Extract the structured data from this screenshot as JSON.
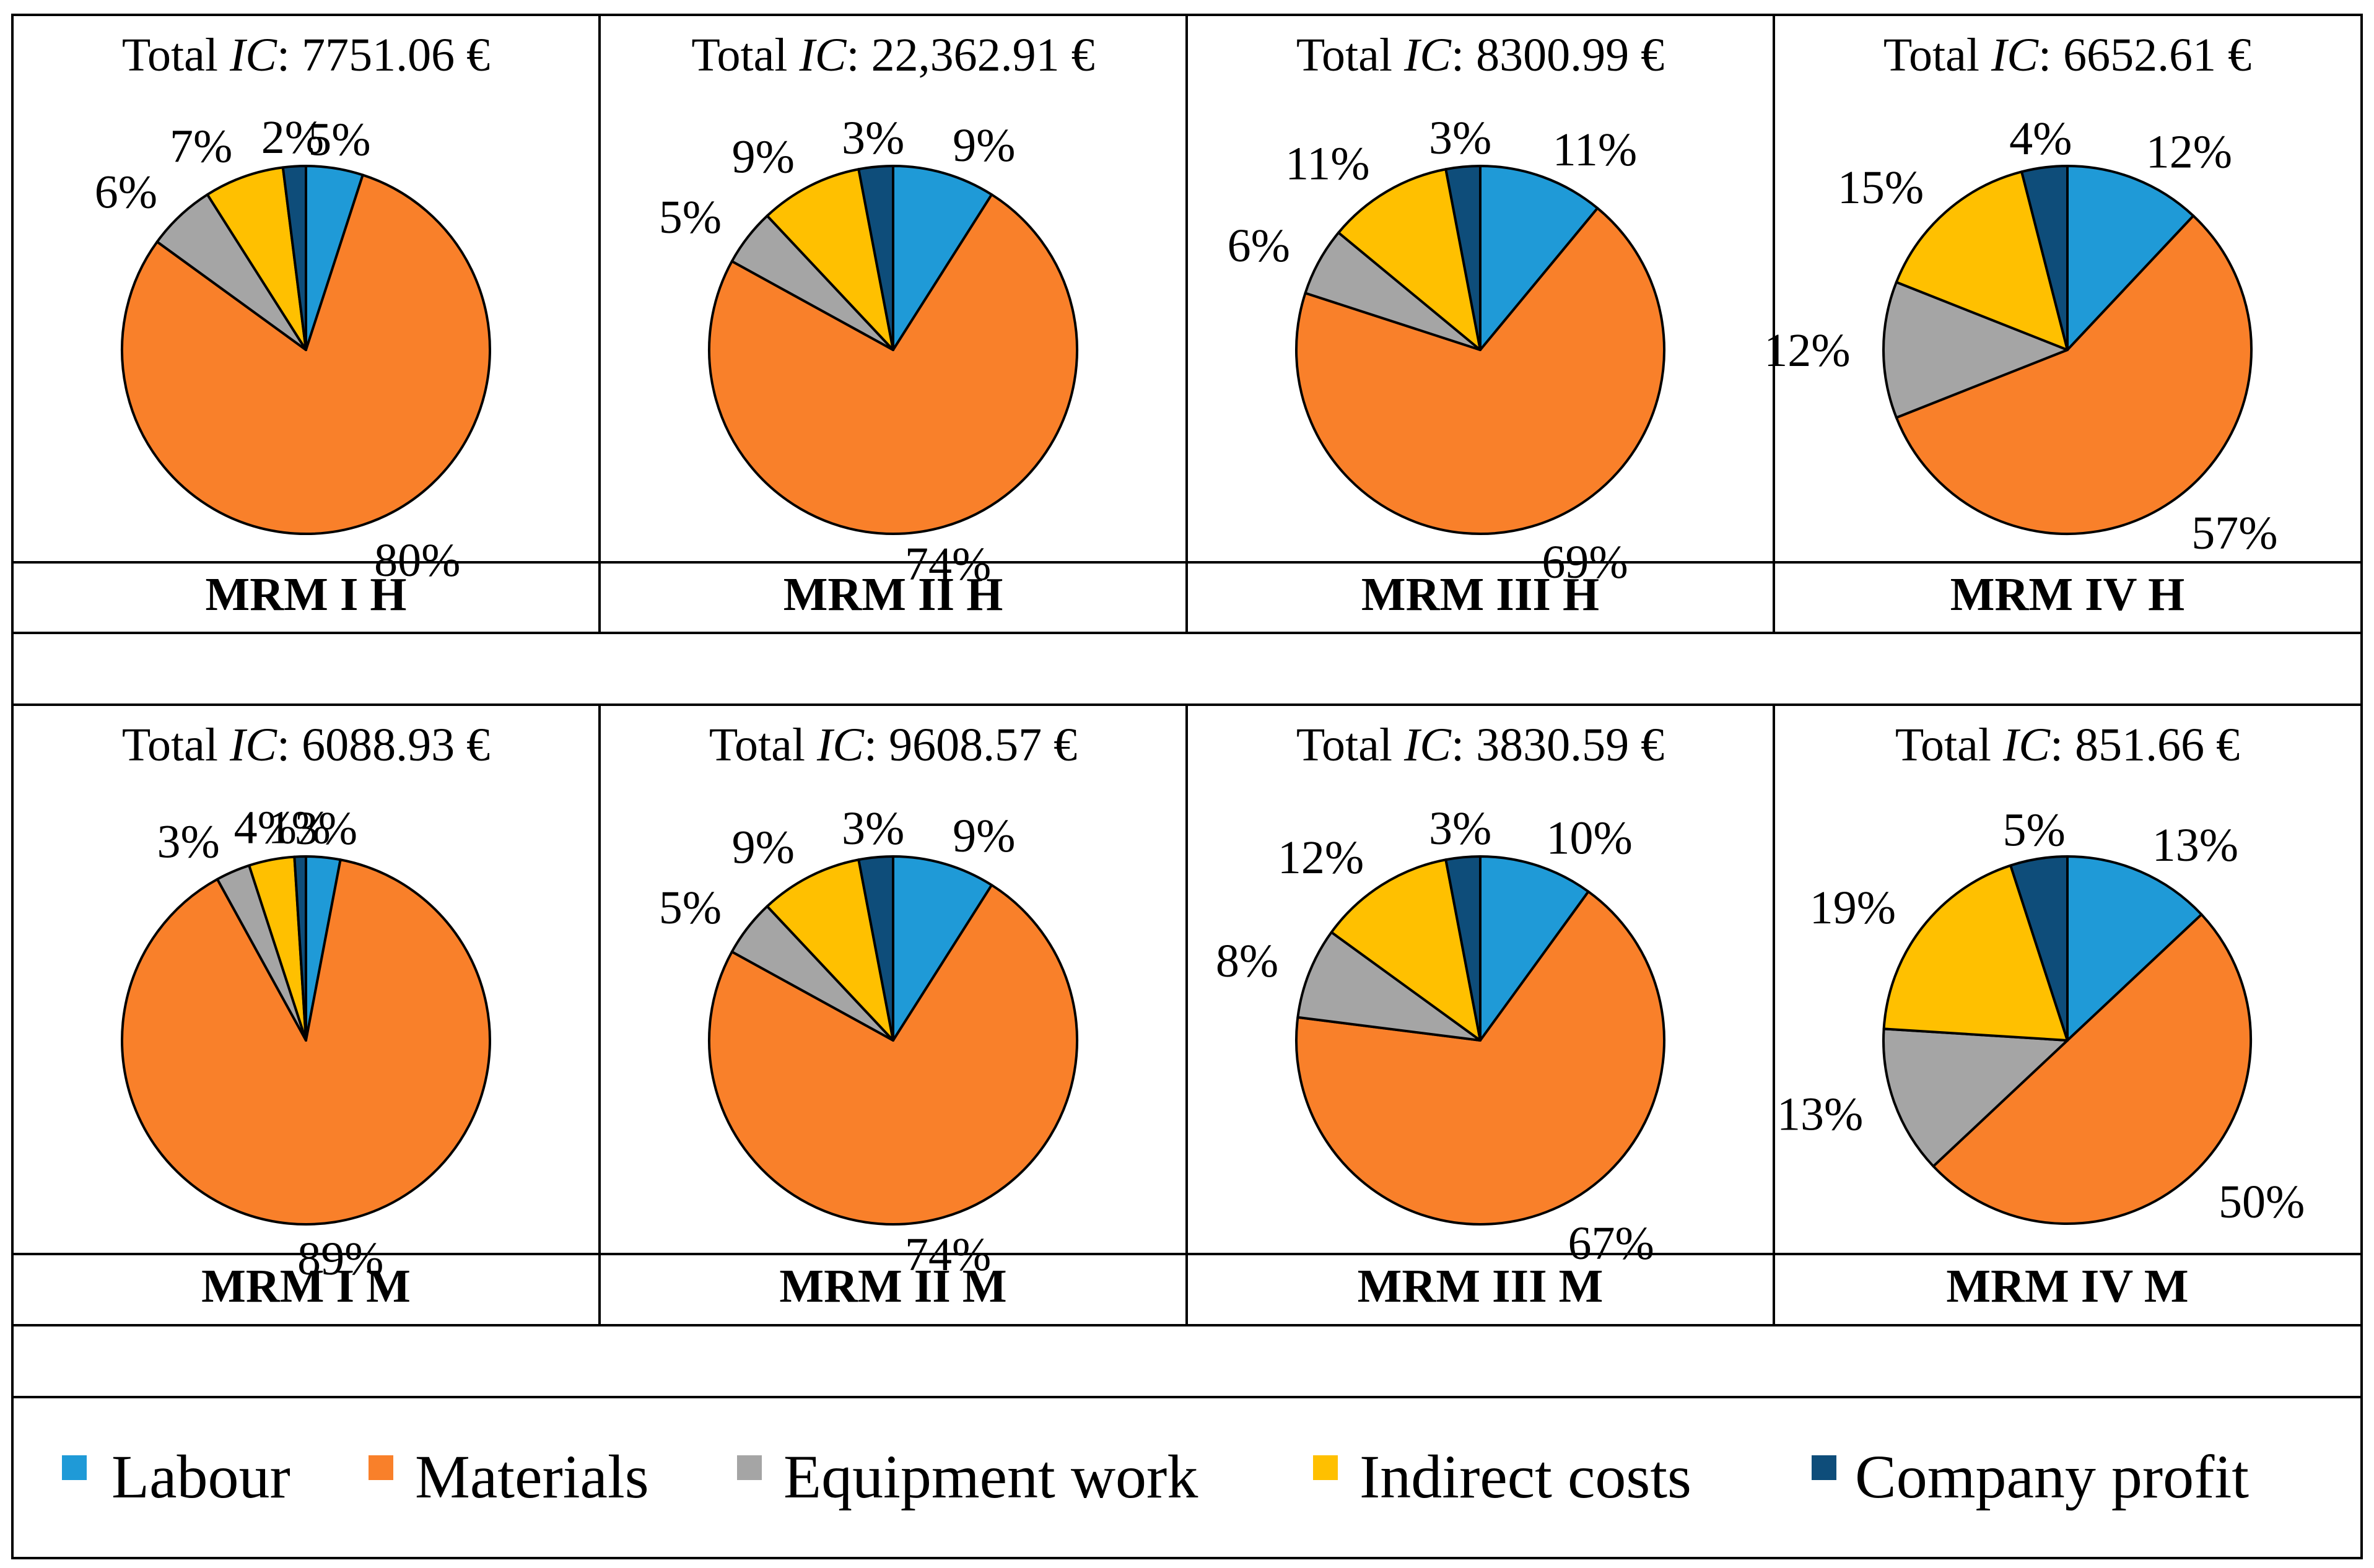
{
  "chart_data": [
    {
      "type": "pie",
      "label": "MRM I H",
      "total_prefix": "Total ",
      "total_ic": "IC",
      "total_value": ": 7751.06 €",
      "slices": [
        5,
        80,
        6,
        7,
        2
      ],
      "slice_labels": [
        "5%",
        "80%",
        "6%",
        "7%",
        "2%"
      ]
    },
    {
      "type": "pie",
      "label": "MRM II H",
      "total_prefix": "Total ",
      "total_ic": "IC",
      "total_value": ": 22,362.91 €",
      "slices": [
        9,
        74,
        5,
        9,
        3
      ],
      "slice_labels": [
        "9%",
        "74%",
        "5%",
        "9%",
        "3%"
      ]
    },
    {
      "type": "pie",
      "label": "MRM III H",
      "total_prefix": "Total ",
      "total_ic": "IC",
      "total_value": ": 8300.99 €",
      "slices": [
        11,
        69,
        6,
        11,
        3
      ],
      "slice_labels": [
        "11%",
        "69%",
        "6%",
        "11%",
        "3%"
      ]
    },
    {
      "type": "pie",
      "label": "MRM IV H",
      "total_prefix": "Total ",
      "total_ic": "IC",
      "total_value": ": 6652.61 €",
      "slices": [
        12,
        57,
        12,
        15,
        4
      ],
      "slice_labels": [
        "12%",
        "57%",
        "12%",
        "15%",
        "4%"
      ]
    },
    {
      "type": "pie",
      "label": "MRM I M",
      "total_prefix": "Total ",
      "total_ic": "IC",
      "total_value": ": 6088.93 €",
      "slices": [
        3,
        89,
        3,
        4,
        1
      ],
      "slice_labels": [
        "3%",
        "89%",
        "3%",
        "4%",
        "1%"
      ]
    },
    {
      "type": "pie",
      "label": "MRM II M",
      "total_prefix": "Total ",
      "total_ic": "IC",
      "total_value": ": 9608.57 €",
      "slices": [
        9,
        74,
        5,
        9,
        3
      ],
      "slice_labels": [
        "9%",
        "74%",
        "5%",
        "9%",
        "3%"
      ]
    },
    {
      "type": "pie",
      "label": "MRM III M",
      "total_prefix": "Total ",
      "total_ic": "IC",
      "total_value": ": 3830.59 €",
      "slices": [
        10,
        67,
        8,
        12,
        3
      ],
      "slice_labels": [
        "10%",
        "67%",
        "8%",
        "12%",
        "3%"
      ]
    },
    {
      "type": "pie",
      "label": "MRM IV M",
      "total_prefix": "Total ",
      "total_ic": "IC",
      "total_value": ": 851.66 €",
      "slices": [
        13,
        50,
        13,
        19,
        5
      ],
      "slice_labels": [
        "13%",
        "50%",
        "13%",
        "19%",
        "5%"
      ]
    }
  ],
  "categories": [
    "Labour",
    "Materials",
    "Equipment work",
    "Indirect costs",
    "Company profit"
  ],
  "colors": [
    "#1f9ad7",
    "#f9802a",
    "#a5a5a5",
    "#ffc000",
    "#0e4d7a"
  ]
}
